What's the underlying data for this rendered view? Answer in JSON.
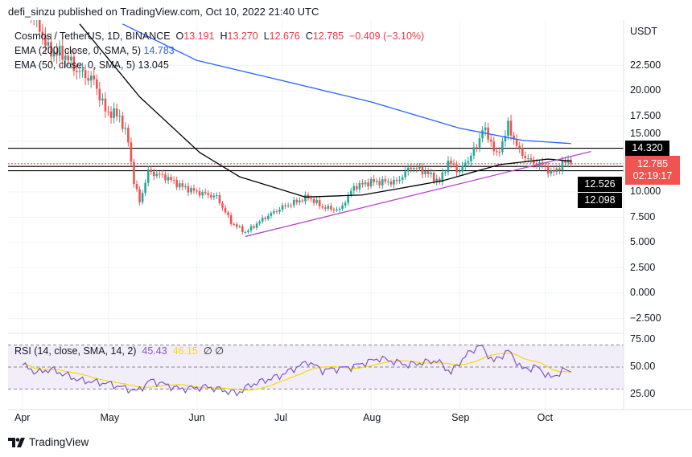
{
  "header": {
    "published": "defi_sinzu published on TradingView.com, Oct 10, 2022 21:40 UTC"
  },
  "legend": {
    "symbol": "Cosmos / TetherUS, 1D, BINANCE",
    "o_label": "O",
    "o": "13.191",
    "h_label": "H",
    "h": "13.270",
    "l_label": "L",
    "l": "12.676",
    "c_label": "C",
    "c": "12.785",
    "change": "−0.409 (−3.10%)",
    "ema200_label": "EMA (200, close, 0, SMA, 5)",
    "ema200": "14.783",
    "ema50_label": "EMA (50, close, 0, SMA, 5)",
    "ema50": "13.045",
    "rsi_label": "RSI (14, close, SMA, 14, 2)",
    "rsi": "45.43",
    "rsi_sma": "46.15",
    "rsi_na": "∅ ∅"
  },
  "price_axis": {
    "currency": "USDT"
  },
  "tags": {
    "level_high": "14.320",
    "price": "12.785",
    "countdown": "02:19:17",
    "level_mid": "12.526",
    "level_low": "12.098"
  },
  "footer": {
    "brand": "TradingView"
  },
  "colors": {
    "up": "#26a69a",
    "down": "#ef5350",
    "ema200": "#2962ff",
    "ema50": "#000000",
    "trend": "#b845c8",
    "rsi": "#7e57c2",
    "rsi_sma": "#f5d90a"
  },
  "chart_data": {
    "type": "candlestick",
    "title": "Cosmos / TetherUS, 1D, BINANCE",
    "x_start": "2022-04-01",
    "x_ticks": [
      {
        "label": "Apr",
        "day": 0
      },
      {
        "label": "May",
        "day": 30
      },
      {
        "label": "Jun",
        "day": 61
      },
      {
        "label": "Jul",
        "day": 91
      },
      {
        "label": "Aug",
        "day": 122
      },
      {
        "label": "Sep",
        "day": 153
      },
      {
        "label": "Oct",
        "day": 183
      }
    ],
    "y_ticks": [
      "22.500",
      "20.000",
      "17.500",
      "15.000",
      "10.000",
      "7.500",
      "5.000",
      "2.500",
      "0.000",
      "−2.500"
    ],
    "y_tick_values": [
      22.5,
      20,
      17.5,
      15,
      10,
      7.5,
      5,
      2.5,
      0,
      -2.5
    ],
    "ylim": [
      -3.5,
      27
    ],
    "close_keypoints": [
      [
        0,
        29
      ],
      [
        5,
        27
      ],
      [
        9,
        24
      ],
      [
        15,
        23.5
      ],
      [
        19,
        22
      ],
      [
        25,
        21
      ],
      [
        29,
        18
      ],
      [
        34,
        17.5
      ],
      [
        37,
        15
      ],
      [
        39,
        11
      ],
      [
        41,
        9
      ],
      [
        44,
        12
      ],
      [
        50,
        11.5
      ],
      [
        56,
        10.5
      ],
      [
        61,
        10
      ],
      [
        68,
        9.5
      ],
      [
        73,
        7
      ],
      [
        78,
        6
      ],
      [
        85,
        7.5
      ],
      [
        91,
        8.5
      ],
      [
        100,
        9.5
      ],
      [
        105,
        8.5
      ],
      [
        111,
        8.2
      ],
      [
        116,
        10.5
      ],
      [
        122,
        11
      ],
      [
        131,
        11
      ],
      [
        136,
        12.5
      ],
      [
        141,
        12
      ],
      [
        146,
        11
      ],
      [
        149,
        13
      ],
      [
        153,
        12
      ],
      [
        159,
        14.5
      ],
      [
        161,
        16.3
      ],
      [
        164,
        15
      ],
      [
        166,
        13.5
      ],
      [
        170,
        16.5
      ],
      [
        174,
        14
      ],
      [
        178,
        13
      ],
      [
        183,
        12.5
      ],
      [
        185,
        11.8
      ],
      [
        191,
        13.19
      ],
      [
        192,
        12.785
      ]
    ],
    "ema200": [
      [
        35,
        26.6
      ],
      [
        61,
        23
      ],
      [
        91,
        21
      ],
      [
        122,
        18.9
      ],
      [
        153,
        16.3
      ],
      [
        175,
        15.1
      ],
      [
        192,
        14.78
      ]
    ],
    "ema50": [
      [
        20,
        26.6
      ],
      [
        41,
        19.4
      ],
      [
        62,
        13.9
      ],
      [
        76,
        11.5
      ],
      [
        99,
        9.5
      ],
      [
        119,
        9.7
      ],
      [
        147,
        11.1
      ],
      [
        167,
        12.7
      ],
      [
        184,
        13.25
      ],
      [
        192,
        13.05
      ]
    ],
    "horizontal_levels": [
      14.32,
      12.526,
      12.098
    ],
    "trendline": [
      [
        78,
        5.6
      ],
      [
        199,
        14.0
      ]
    ],
    "rsi": {
      "yticks": [
        "75.00",
        "50.00",
        "25.00"
      ],
      "ytick_values": [
        75,
        50,
        25
      ],
      "bands": [
        70,
        50,
        30
      ],
      "keypoints": [
        [
          0,
          52
        ],
        [
          5,
          45
        ],
        [
          10,
          48
        ],
        [
          20,
          38
        ],
        [
          30,
          35
        ],
        [
          40,
          28
        ],
        [
          45,
          38
        ],
        [
          55,
          30
        ],
        [
          65,
          32
        ],
        [
          75,
          26
        ],
        [
          80,
          34
        ],
        [
          90,
          42
        ],
        [
          100,
          55
        ],
        [
          105,
          47
        ],
        [
          115,
          50
        ],
        [
          125,
          58
        ],
        [
          135,
          52
        ],
        [
          145,
          56
        ],
        [
          150,
          45
        ],
        [
          155,
          60
        ],
        [
          160,
          70
        ],
        [
          165,
          55
        ],
        [
          170,
          65
        ],
        [
          175,
          48
        ],
        [
          180,
          50
        ],
        [
          185,
          40
        ],
        [
          190,
          48
        ],
        [
          192,
          45.43
        ]
      ]
    }
  }
}
